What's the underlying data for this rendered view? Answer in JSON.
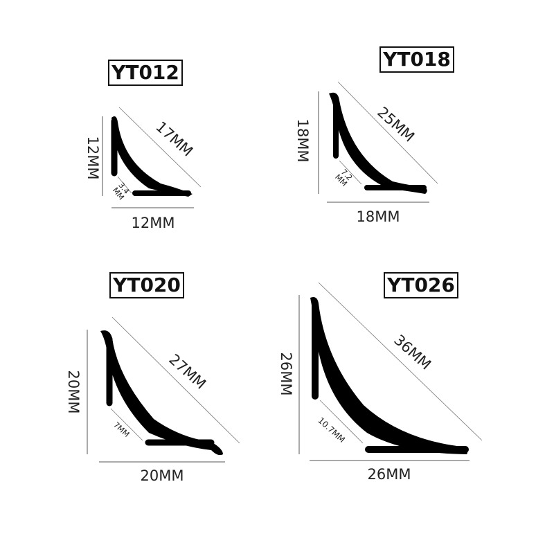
{
  "profiles": [
    {
      "model": "YT012",
      "hypotenuse": "17MM",
      "height": "12MM",
      "width": "12MM",
      "radius_line1": "3.4",
      "radius_line2": "MM"
    },
    {
      "model": "YT018",
      "hypotenuse": "25MM",
      "height": "18MM",
      "width": "18MM",
      "radius_line1": "7.2",
      "radius_line2": "MM"
    },
    {
      "model": "YT020",
      "hypotenuse": "27MM",
      "height": "20MM",
      "width": "20MM",
      "radius_line1": "7MM",
      "radius_line2": ""
    },
    {
      "model": "YT026",
      "hypotenuse": "36MM",
      "height": "26MM",
      "width": "26MM",
      "radius_line1": "10.7MM",
      "radius_line2": ""
    }
  ],
  "colors": {
    "profile": "#000000",
    "dimension_line": "#555555",
    "text": "#222222"
  }
}
